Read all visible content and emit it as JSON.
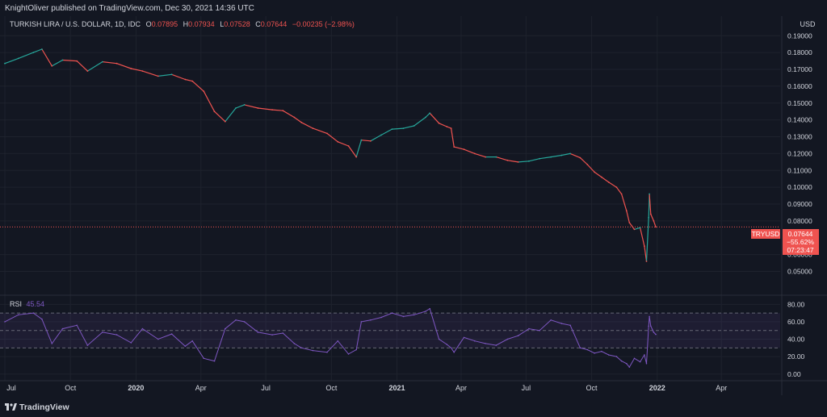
{
  "header": {
    "published_text": "KnightOliver published on TradingView.com, Dec 30, 2021 14:36 UTC"
  },
  "legend": {
    "symbol_text": "TURKISH LIRA / U.S. DOLLAR, 1D, IDC",
    "o_label": "O",
    "o_value": "0.07895",
    "h_label": "H",
    "h_value": "0.07934",
    "l_label": "L",
    "l_value": "0.07528",
    "c_label": "C",
    "c_value": "0.07644",
    "change": "−0.00235 (−2.98%)"
  },
  "price_axis": {
    "currency": "USD",
    "ticks": [
      "0.19000",
      "0.18000",
      "0.17000",
      "0.16000",
      "0.15000",
      "0.14000",
      "0.13000",
      "0.12000",
      "0.11000",
      "0.10000",
      "0.09000",
      "0.08000",
      "0.06000",
      "0.05000"
    ]
  },
  "last_price_marker": {
    "symbol": "TRYUSD",
    "price": "0.07644",
    "percent": "−55.62%",
    "countdown": "07:23:47"
  },
  "rsi": {
    "label": "RSI",
    "value": "45.54",
    "ticks": [
      "80.00",
      "60.00",
      "40.00",
      "20.00",
      "0.00"
    ]
  },
  "time_axis": {
    "labels": [
      "Jul",
      "Oct",
      "2020",
      "Apr",
      "Jul",
      "Oct",
      "2021",
      "Apr",
      "Jul",
      "Oct",
      "2022",
      "Apr"
    ]
  },
  "footer": {
    "brand": "TradingView"
  },
  "colors": {
    "background": "#131722",
    "up": "#26a69a",
    "down": "#ef5350",
    "rsi_line": "#7e57c2",
    "price_marker": "#ef5350"
  },
  "chart_data": [
    {
      "type": "line",
      "title": "TURKISH LIRA / U.S. DOLLAR, 1D, IDC",
      "x_unit": "date",
      "ylabel": "USD",
      "ylim": [
        0.045,
        0.193
      ],
      "x": [
        "2019-07-01",
        "2019-07-20",
        "2019-08-10",
        "2019-08-22",
        "2019-09-05",
        "2019-09-20",
        "2019-10-10",
        "2019-10-25",
        "2019-11-15",
        "2019-12-05",
        "2019-12-25",
        "2020-01-10",
        "2020-02-01",
        "2020-02-20",
        "2020-03-10",
        "2020-03-20",
        "2020-04-05",
        "2020-04-20",
        "2020-05-05",
        "2020-05-20",
        "2020-06-01",
        "2020-06-20",
        "2020-07-10",
        "2020-07-25",
        "2020-08-10",
        "2020-08-20",
        "2020-09-05",
        "2020-09-25",
        "2020-10-10",
        "2020-10-25",
        "2020-11-05",
        "2020-11-12",
        "2020-11-25",
        "2020-12-10",
        "2020-12-25",
        "2021-01-10",
        "2021-01-25",
        "2021-02-10",
        "2021-02-16",
        "2021-03-01",
        "2021-03-12",
        "2021-03-18",
        "2021-03-22",
        "2021-04-05",
        "2021-04-20",
        "2021-05-05",
        "2021-05-20",
        "2021-06-05",
        "2021-06-20",
        "2021-07-05",
        "2021-07-20",
        "2021-08-05",
        "2021-08-20",
        "2021-09-01",
        "2021-09-15",
        "2021-09-25",
        "2021-10-05",
        "2021-10-15",
        "2021-10-25",
        "2021-11-05",
        "2021-11-12",
        "2021-11-19",
        "2021-11-23",
        "2021-11-30",
        "2021-12-08",
        "2021-12-14",
        "2021-12-17",
        "2021-12-20",
        "2021-12-21",
        "2021-12-23",
        "2021-12-27",
        "2021-12-30"
      ],
      "values": [
        0.1735,
        0.1765,
        0.18,
        0.182,
        0.172,
        0.1755,
        0.175,
        0.169,
        0.1745,
        0.1735,
        0.1705,
        0.169,
        0.166,
        0.167,
        0.164,
        0.163,
        0.157,
        0.145,
        0.139,
        0.147,
        0.149,
        0.147,
        0.146,
        0.1455,
        0.1415,
        0.1385,
        0.135,
        0.132,
        0.127,
        0.1245,
        0.118,
        0.128,
        0.1275,
        0.131,
        0.1345,
        0.135,
        0.1365,
        0.1415,
        0.144,
        0.138,
        0.136,
        0.135,
        0.124,
        0.1225,
        0.12,
        0.118,
        0.118,
        0.116,
        0.115,
        0.1155,
        0.117,
        0.118,
        0.119,
        0.12,
        0.1175,
        0.1135,
        0.109,
        0.106,
        0.103,
        0.1,
        0.096,
        0.086,
        0.079,
        0.075,
        0.076,
        0.065,
        0.056,
        0.082,
        0.096,
        0.084,
        0.08,
        0.0764
      ],
      "last_value": 0.07644
    },
    {
      "type": "line",
      "title": "RSI",
      "ylim": [
        -3,
        84
      ],
      "levels": [
        70,
        50,
        30
      ],
      "x": [
        "2019-07-01",
        "2019-07-20",
        "2019-08-10",
        "2019-08-22",
        "2019-09-05",
        "2019-09-20",
        "2019-10-10",
        "2019-10-25",
        "2019-11-15",
        "2019-12-05",
        "2019-12-25",
        "2020-01-10",
        "2020-02-01",
        "2020-02-20",
        "2020-03-10",
        "2020-03-20",
        "2020-04-05",
        "2020-04-20",
        "2020-05-05",
        "2020-05-20",
        "2020-06-01",
        "2020-06-20",
        "2020-07-10",
        "2020-07-25",
        "2020-08-10",
        "2020-08-20",
        "2020-09-05",
        "2020-09-25",
        "2020-10-10",
        "2020-10-25",
        "2020-11-05",
        "2020-11-12",
        "2020-11-25",
        "2020-12-10",
        "2020-12-25",
        "2021-01-10",
        "2021-01-25",
        "2021-02-10",
        "2021-02-16",
        "2021-03-01",
        "2021-03-12",
        "2021-03-18",
        "2021-03-22",
        "2021-04-05",
        "2021-04-20",
        "2021-05-05",
        "2021-05-20",
        "2021-06-05",
        "2021-06-20",
        "2021-07-05",
        "2021-07-20",
        "2021-08-05",
        "2021-08-20",
        "2021-09-01",
        "2021-09-15",
        "2021-09-25",
        "2021-10-05",
        "2021-10-15",
        "2021-10-25",
        "2021-11-05",
        "2021-11-12",
        "2021-11-19",
        "2021-11-23",
        "2021-11-30",
        "2021-12-08",
        "2021-12-14",
        "2021-12-17",
        "2021-12-20",
        "2021-12-21",
        "2021-12-23",
        "2021-12-27",
        "2021-12-30"
      ],
      "values": [
        60,
        68,
        70,
        63,
        35,
        52,
        56,
        33,
        48,
        45,
        36,
        52,
        40,
        46,
        32,
        38,
        18,
        15,
        52,
        62,
        60,
        48,
        45,
        47,
        35,
        30,
        27,
        25,
        38,
        23,
        28,
        60,
        62,
        65,
        70,
        66,
        68,
        72,
        75,
        40,
        34,
        30,
        25,
        42,
        38,
        35,
        33,
        40,
        44,
        52,
        50,
        62,
        58,
        56,
        30,
        28,
        24,
        26,
        22,
        20,
        15,
        12,
        8,
        18,
        14,
        22,
        12,
        55,
        66,
        55,
        48,
        45.54
      ]
    }
  ]
}
